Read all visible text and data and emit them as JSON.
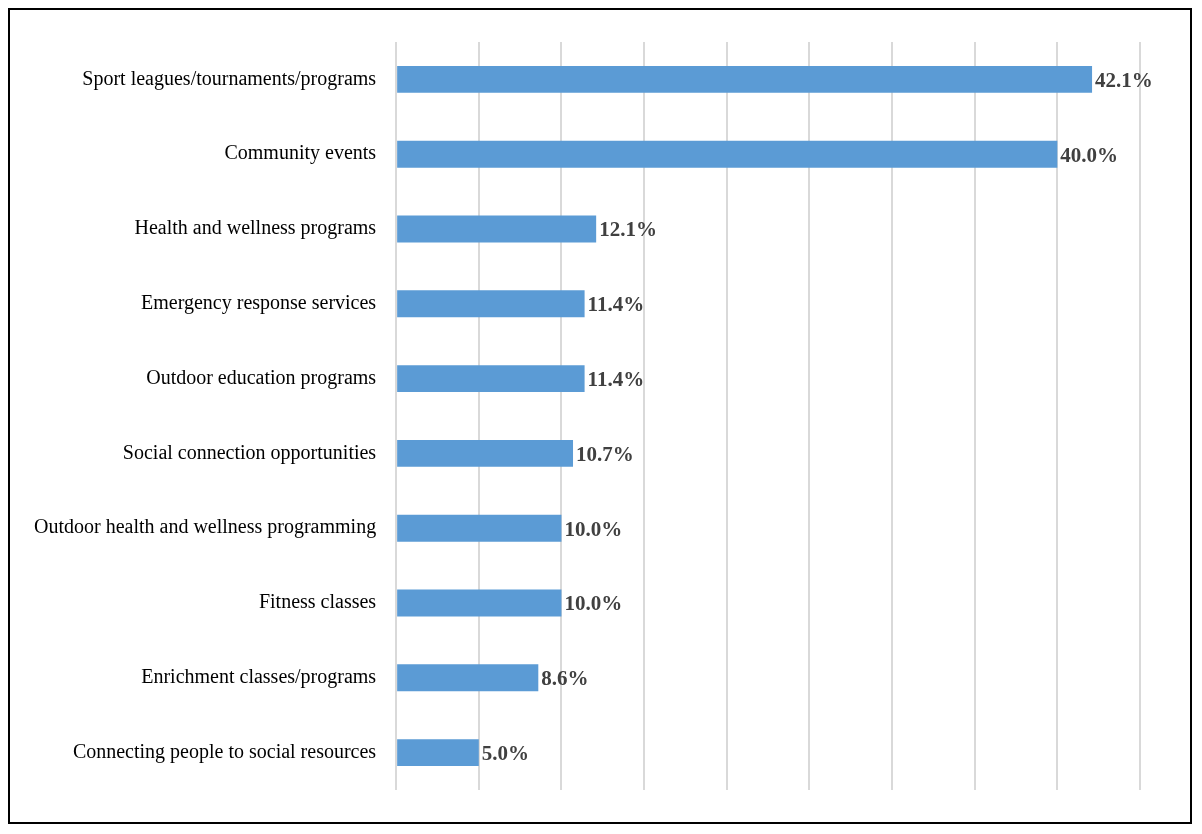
{
  "chart_data": {
    "type": "bar",
    "orientation": "horizontal",
    "categories": [
      "Sport leagues/tournaments/programs",
      "Community events",
      "Health and wellness programs",
      "Emergency response services",
      "Outdoor education programs",
      "Social connection opportunities",
      "Outdoor health and wellness programming",
      "Fitness classes",
      "Enrichment classes/programs",
      "Connecting people to social resources"
    ],
    "values": [
      42.1,
      40.0,
      12.1,
      11.4,
      11.4,
      10.7,
      10.0,
      10.0,
      8.6,
      5.0
    ],
    "value_labels": [
      "42.1%",
      "40.0%",
      "12.1%",
      "11.4%",
      "11.4%",
      "10.7%",
      "10.0%",
      "10.0%",
      "8.6%",
      "5.0%"
    ],
    "color": "#5b9bd5",
    "xlim": [
      0,
      45
    ],
    "xticks": [
      {
        "value": 0,
        "label": null
      },
      {
        "value": 5,
        "label": null
      },
      {
        "value": 10,
        "label": null
      },
      {
        "value": 15,
        "label": null
      },
      {
        "value": 20,
        "label": null
      },
      {
        "value": 25,
        "label": null
      },
      {
        "value": 30,
        "label": null
      },
      {
        "value": 35,
        "label": null
      },
      {
        "value": 40,
        "label": null
      },
      {
        "value": 45,
        "label": null
      }
    ],
    "grid": "x",
    "legend": false,
    "tick_labels": "y"
  }
}
